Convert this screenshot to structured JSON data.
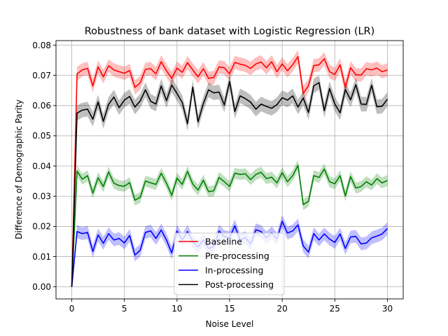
{
  "chart_data": {
    "type": "line",
    "title": "Robustness of bank dataset with Logistic Regression (LR)",
    "xlabel": "Noise Level",
    "ylabel": "Difference of Demographic Parity",
    "xlim": [
      -1.5,
      31.5
    ],
    "ylim": [
      -0.004,
      0.0815
    ],
    "xticks": [
      0,
      5,
      10,
      15,
      20,
      25,
      30
    ],
    "yticks": [
      0.0,
      0.01,
      0.02,
      0.03,
      0.04,
      0.05,
      0.06,
      0.07,
      0.08
    ],
    "xtick_labels": [
      "0",
      "5",
      "10",
      "15",
      "20",
      "25",
      "30"
    ],
    "ytick_labels": [
      "0.00",
      "0.01",
      "0.02",
      "0.03",
      "0.04",
      "0.05",
      "0.06",
      "0.07",
      "0.08"
    ],
    "grid": true,
    "legend_position": "lower center",
    "x": [
      0,
      0.5,
      1,
      1.5,
      2,
      2.5,
      3,
      3.5,
      4,
      4.5,
      5,
      5.5,
      6,
      6.5,
      7,
      7.5,
      8,
      8.5,
      9,
      9.5,
      10,
      10.5,
      11,
      11.5,
      12,
      12.5,
      13,
      13.5,
      14,
      14.5,
      15,
      15.5,
      16,
      16.5,
      17,
      17.5,
      18,
      18.5,
      19,
      19.5,
      20,
      20.5,
      21,
      21.5,
      22,
      22.5,
      23,
      23.5,
      24,
      24.5,
      25,
      25.5,
      26,
      26.5,
      27,
      27.5,
      28,
      28.5,
      29,
      29.5,
      30
    ],
    "series": [
      {
        "name": "Baseline",
        "color": "#ff0000",
        "values": [
          0.0,
          0.0705,
          0.0718,
          0.0723,
          0.0665,
          0.0728,
          0.0695,
          0.0732,
          0.0718,
          0.0712,
          0.0707,
          0.0716,
          0.066,
          0.0675,
          0.072,
          0.0722,
          0.0705,
          0.0745,
          0.0715,
          0.069,
          0.0724,
          0.071,
          0.0742,
          0.0718,
          0.0695,
          0.0722,
          0.069,
          0.0693,
          0.0728,
          0.0725,
          0.0705,
          0.0743,
          0.0737,
          0.0733,
          0.0723,
          0.0738,
          0.0744,
          0.0725,
          0.0745,
          0.0712,
          0.0738,
          0.0715,
          0.0735,
          0.0762,
          0.064,
          0.0666,
          0.0732,
          0.0735,
          0.0755,
          0.0712,
          0.0703,
          0.0735,
          0.066,
          0.0725,
          0.0702,
          0.0701,
          0.0722,
          0.0718,
          0.0724,
          0.0712,
          0.0718
        ]
      },
      {
        "name": "Pre-processing",
        "color": "#008000",
        "values": [
          0.0,
          0.0383,
          0.0356,
          0.0368,
          0.031,
          0.0361,
          0.0332,
          0.038,
          0.0343,
          0.0335,
          0.0333,
          0.0345,
          0.0287,
          0.0296,
          0.035,
          0.0344,
          0.0339,
          0.0376,
          0.0343,
          0.0303,
          0.036,
          0.0339,
          0.0382,
          0.034,
          0.032,
          0.0353,
          0.0315,
          0.0318,
          0.0362,
          0.0348,
          0.0332,
          0.0376,
          0.0372,
          0.0374,
          0.0355,
          0.0372,
          0.0379,
          0.0358,
          0.0363,
          0.0344,
          0.0378,
          0.0348,
          0.0368,
          0.0402,
          0.0272,
          0.0283,
          0.0368,
          0.0362,
          0.039,
          0.0348,
          0.0341,
          0.0368,
          0.0301,
          0.0365,
          0.0327,
          0.0332,
          0.0348,
          0.0337,
          0.0358,
          0.0344,
          0.0352
        ]
      },
      {
        "name": "In-processing",
        "color": "#0000ff",
        "values": [
          0.0,
          0.0183,
          0.0176,
          0.018,
          0.0117,
          0.0172,
          0.0144,
          0.0176,
          0.0155,
          0.016,
          0.0145,
          0.017,
          0.0105,
          0.0121,
          0.018,
          0.0185,
          0.016,
          0.0188,
          0.0155,
          0.0112,
          0.0185,
          0.0155,
          0.0183,
          0.015,
          0.0132,
          0.0155,
          0.0127,
          0.0133,
          0.0185,
          0.0166,
          0.0163,
          0.0202,
          0.0155,
          0.0163,
          0.0142,
          0.0189,
          0.0183,
          0.0162,
          0.0179,
          0.0158,
          0.0217,
          0.0178,
          0.0185,
          0.0205,
          0.0135,
          0.0115,
          0.0176,
          0.0155,
          0.0175,
          0.0158,
          0.0147,
          0.0175,
          0.0127,
          0.0165,
          0.0167,
          0.0142,
          0.0145,
          0.0162,
          0.0168,
          0.0175,
          0.0193
        ]
      },
      {
        "name": "Post-processing",
        "color": "#000000",
        "values": [
          0.0,
          0.0575,
          0.0585,
          0.0588,
          0.0555,
          0.0612,
          0.0548,
          0.0604,
          0.0628,
          0.0593,
          0.0618,
          0.063,
          0.0595,
          0.0615,
          0.0652,
          0.0614,
          0.0605,
          0.0665,
          0.0616,
          0.0668,
          0.064,
          0.061,
          0.054,
          0.0661,
          0.0546,
          0.0606,
          0.0652,
          0.0642,
          0.0645,
          0.0602,
          0.068,
          0.058,
          0.0632,
          0.0623,
          0.0611,
          0.0588,
          0.0605,
          0.0597,
          0.0591,
          0.0603,
          0.0626,
          0.0618,
          0.0632,
          0.0595,
          0.0625,
          0.0577,
          0.0665,
          0.0676,
          0.0583,
          0.0656,
          0.0605,
          0.0576,
          0.0653,
          0.0619,
          0.0669,
          0.0605,
          0.0604,
          0.0667,
          0.0596,
          0.0598,
          0.0621
        ]
      }
    ],
    "band_half_width": [
      [
        0.0,
        0.0023,
        0.0022,
        0.0022,
        0.0022,
        0.0022,
        0.0022,
        0.0021,
        0.0022,
        0.0022,
        0.0022,
        0.0022,
        0.0023,
        0.0023,
        0.0022,
        0.0022,
        0.0022,
        0.0022,
        0.0022,
        0.0022,
        0.0022,
        0.0022,
        0.0022,
        0.0022,
        0.0022,
        0.0022,
        0.0022,
        0.0022,
        0.0022,
        0.0022,
        0.0022,
        0.0022,
        0.0022,
        0.0022,
        0.0022,
        0.0022,
        0.0022,
        0.0022,
        0.0022,
        0.0022,
        0.0022,
        0.0022,
        0.0022,
        0.0022,
        0.0024,
        0.0022,
        0.0022,
        0.0022,
        0.0022,
        0.0022,
        0.0022,
        0.0022,
        0.0024,
        0.0022,
        0.0022,
        0.0022,
        0.0022,
        0.0022,
        0.0022,
        0.0022,
        0.0022
      ],
      [
        0.0,
        0.0018,
        0.0018,
        0.0018,
        0.0018,
        0.0018,
        0.0018,
        0.0018,
        0.0018,
        0.0018,
        0.0018,
        0.0018,
        0.0018,
        0.0018,
        0.0018,
        0.0018,
        0.0018,
        0.0018,
        0.0018,
        0.0018,
        0.0018,
        0.0018,
        0.0018,
        0.0018,
        0.0018,
        0.0018,
        0.0018,
        0.0018,
        0.0018,
        0.0018,
        0.0018,
        0.0018,
        0.0018,
        0.0018,
        0.0018,
        0.0018,
        0.0018,
        0.0018,
        0.0018,
        0.0018,
        0.0018,
        0.0018,
        0.0018,
        0.0018,
        0.0018,
        0.0018,
        0.0018,
        0.0018,
        0.0018,
        0.0018,
        0.0018,
        0.0018,
        0.0018,
        0.0018,
        0.0018,
        0.0018,
        0.0018,
        0.0018,
        0.0018,
        0.0018,
        0.0018
      ],
      [
        0.0,
        0.0022,
        0.0021,
        0.0022,
        0.0021,
        0.0021,
        0.0021,
        0.0021,
        0.0021,
        0.0021,
        0.0021,
        0.0021,
        0.0021,
        0.0021,
        0.0021,
        0.0021,
        0.0021,
        0.0021,
        0.0021,
        0.0021,
        0.0021,
        0.0021,
        0.0021,
        0.0021,
        0.0021,
        0.0021,
        0.0021,
        0.0021,
        0.0021,
        0.0021,
        0.0021,
        0.0021,
        0.0021,
        0.0021,
        0.0021,
        0.0021,
        0.0021,
        0.0021,
        0.0021,
        0.0021,
        0.0021,
        0.0021,
        0.0021,
        0.0021,
        0.0021,
        0.0021,
        0.0021,
        0.0021,
        0.0021,
        0.0021,
        0.0021,
        0.0021,
        0.0021,
        0.0021,
        0.0021,
        0.0021,
        0.0021,
        0.0021,
        0.0021,
        0.0021,
        0.0021
      ],
      [
        0.0,
        0.0025,
        0.0024,
        0.0024,
        0.0024,
        0.0024,
        0.0024,
        0.0024,
        0.0024,
        0.0024,
        0.0024,
        0.0024,
        0.0024,
        0.0024,
        0.0024,
        0.0024,
        0.0024,
        0.0024,
        0.0024,
        0.0024,
        0.0024,
        0.0024,
        0.0024,
        0.0024,
        0.0024,
        0.0024,
        0.0024,
        0.0024,
        0.0024,
        0.0024,
        0.0024,
        0.0024,
        0.0024,
        0.0024,
        0.0024,
        0.0024,
        0.0024,
        0.0024,
        0.0024,
        0.0024,
        0.0024,
        0.0024,
        0.0024,
        0.0024,
        0.0024,
        0.0024,
        0.0024,
        0.0024,
        0.0024,
        0.0024,
        0.0024,
        0.0024,
        0.0024,
        0.0024,
        0.0024,
        0.0024,
        0.0024,
        0.0024,
        0.0024,
        0.0024,
        0.0024
      ]
    ]
  }
}
